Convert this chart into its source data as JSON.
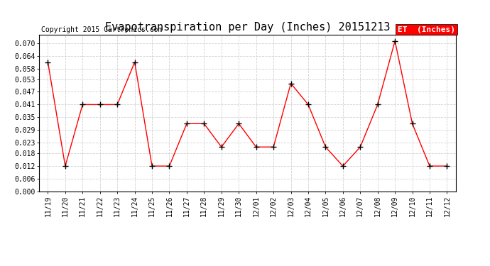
{
  "title": "Evapotranspiration per Day (Inches) 20151213",
  "copyright": "Copyright 2015 Cartronics.com",
  "legend_label": "ET  (Inches)",
  "x_labels": [
    "11/19",
    "11/20",
    "11/21",
    "11/22",
    "11/23",
    "11/24",
    "11/25",
    "11/26",
    "11/27",
    "11/28",
    "11/29",
    "11/30",
    "12/01",
    "12/02",
    "12/03",
    "12/04",
    "12/05",
    "12/06",
    "12/07",
    "12/08",
    "12/09",
    "12/10",
    "12/11",
    "12/12"
  ],
  "y_values": [
    0.061,
    0.012,
    0.041,
    0.041,
    0.041,
    0.061,
    0.012,
    0.012,
    0.032,
    0.032,
    0.021,
    0.032,
    0.021,
    0.021,
    0.051,
    0.041,
    0.021,
    0.012,
    0.021,
    0.041,
    0.071,
    0.032,
    0.012,
    0.012
  ],
  "line_color": "red",
  "marker_color": "black",
  "marker_style": "+",
  "ylim": [
    0.0,
    0.074
  ],
  "yticks": [
    0.0,
    0.006,
    0.012,
    0.018,
    0.023,
    0.029,
    0.035,
    0.041,
    0.047,
    0.053,
    0.058,
    0.064,
    0.07
  ],
  "bg_color": "white",
  "grid_color": "#cccccc",
  "title_fontsize": 11,
  "copyright_fontsize": 7,
  "legend_fontsize": 8,
  "tick_fontsize": 7,
  "legend_bg": "red",
  "legend_text_color": "white"
}
